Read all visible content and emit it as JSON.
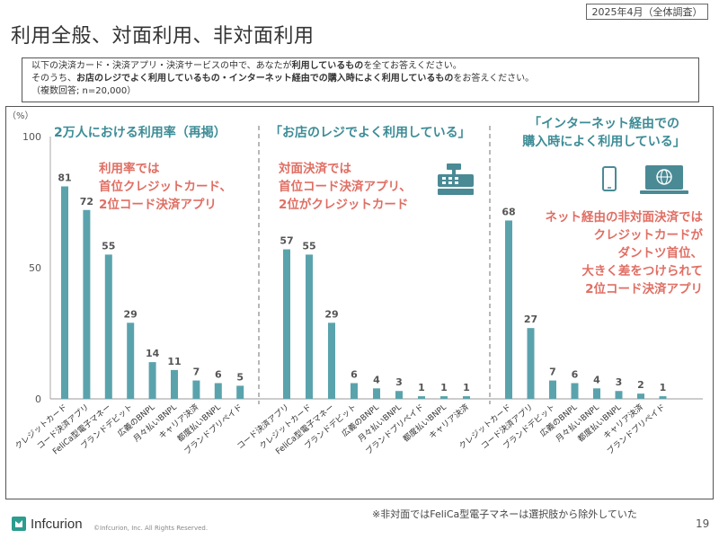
{
  "header": {
    "badge": "2025年4月（全体調査）",
    "title": "利用全般、対面利用、非対面利用"
  },
  "question": {
    "line1_a": "以下の決済カード・決済アプリ・決済サービスの中で、あなたが",
    "line1_b": "利用しているもの",
    "line1_c": "を全てお答えください。",
    "line2_a": "そのうち、",
    "line2_b": "お店のレジでよく利用しているもの・インターネット経由での購入時によく利用しているもの",
    "line2_c": "をお答えください。",
    "line3": "（複数回答; n=20,000）"
  },
  "footnote": "※非対面ではFeliCa型電子マネーは選択肢から除外していた",
  "footer": {
    "brand": "Infcurion",
    "copyright": "©Infcurion, Inc.  All Rights Reserved.",
    "page": "19"
  },
  "colors": {
    "bar": "#5aa3ad",
    "heading": "#3d8c96",
    "annotation": "#e06e63",
    "icon": "#4a8a95"
  },
  "chart_data": {
    "type": "bar",
    "ylabel": "（%）",
    "ylim": [
      0,
      100
    ],
    "yticks": [
      0,
      50,
      100
    ],
    "panels": [
      {
        "title": "2万人における利用率（再掲）",
        "annotation": [
          "利用率では",
          "首位クレジットカード、",
          "2位コード決済アプリ"
        ],
        "categories": [
          "クレジットカード",
          "コード決済アプリ",
          "FeliCa型電子マネー",
          "ブランドデビット",
          "広義のBNPL",
          "月々払いBNPL",
          "キャリア決済",
          "都度払いBNPL",
          "ブランドプリペイド"
        ],
        "values": [
          81,
          72,
          55,
          29,
          14,
          11,
          7,
          6,
          5
        ]
      },
      {
        "title": "「お店のレジでよく利用している」",
        "annotation": [
          "対面決済では",
          "首位コード決済アプリ、",
          "2位がクレジットカード"
        ],
        "categories": [
          "コード決済アプリ",
          "クレジットカード",
          "FeliCa型電子マネー",
          "ブランドデビット",
          "広義のBNPL",
          "月々払いBNPL",
          "ブランドプリペイド",
          "都度払いBNPL",
          "キャリア決済"
        ],
        "values": [
          57,
          55,
          29,
          6,
          4,
          3,
          1,
          1,
          1
        ]
      },
      {
        "title": [
          "「インターネット経由での",
          "購入時によく利用している」"
        ],
        "annotation": [
          "ネット経由の非対面決済では",
          "クレジットカードが",
          "ダントツ首位、",
          "大きく差をつけられて",
          "2位コード決済アプリ"
        ],
        "categories": [
          "クレジットカード",
          "コード決済アプリ",
          "ブランドデビット",
          "広義のBNPL",
          "月々払いBNPL",
          "都度払いBNPL",
          "キャリア決済",
          "ブランドプリペイド"
        ],
        "values": [
          68,
          27,
          7,
          6,
          4,
          3,
          2,
          1
        ]
      }
    ]
  }
}
